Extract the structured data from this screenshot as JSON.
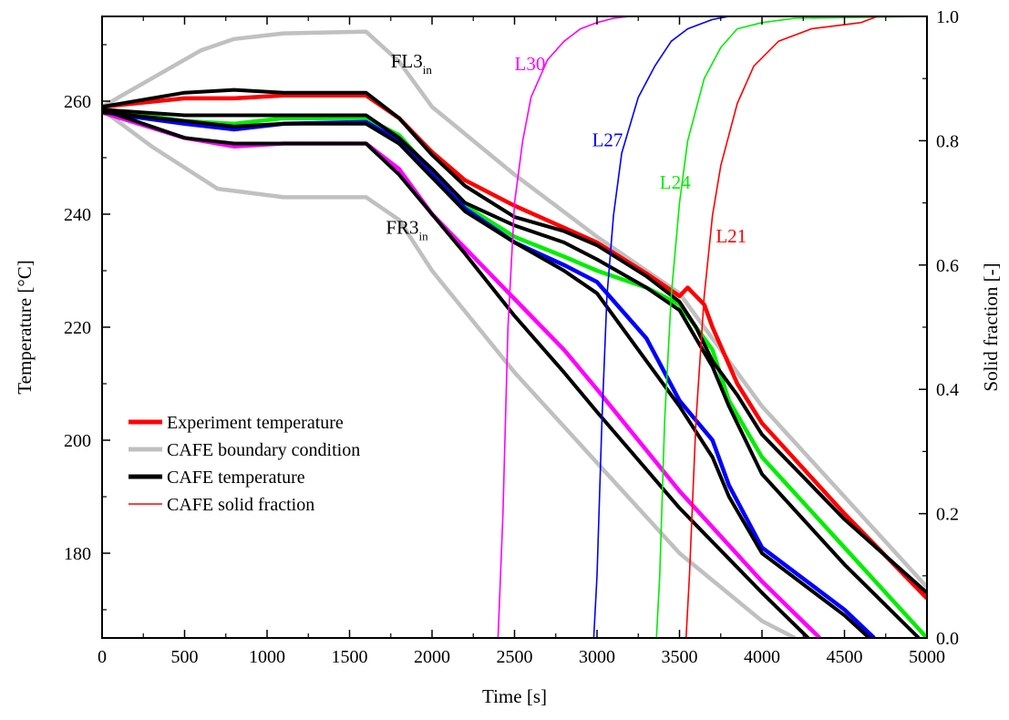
{
  "chart_data": {
    "type": "line",
    "title": "",
    "xlabel": "Time [s]",
    "ylabel_left": "Temperature [°C]",
    "ylabel_right": "Solid fraction [-]",
    "xlim": [
      0,
      5000
    ],
    "ylim_left": [
      165,
      275
    ],
    "ylim_right": [
      0,
      1
    ],
    "grid": false,
    "legend_position": "bottom-left",
    "x_ticks": [
      "0",
      "500",
      "1000",
      "1500",
      "2000",
      "2500",
      "3000",
      "3500",
      "4000",
      "4500",
      "5000"
    ],
    "y_left_ticks": [
      "180",
      "200",
      "220",
      "240",
      "260"
    ],
    "y_right_ticks": [
      "0.0",
      "0.2",
      "0.4",
      "0.6",
      "0.8",
      "1.0"
    ],
    "colors": {
      "experiment": "#ff0000",
      "boundary": "#c0c0c0",
      "cafe": "#000000",
      "L30": "#ff00ff",
      "L27": "#0000ff",
      "L24": "#00ee00",
      "L21": "#ff0000"
    },
    "legend": [
      {
        "label": "Experiment temperature",
        "color": "#ff0000",
        "style": "thick"
      },
      {
        "label": "CAFE boundary condition",
        "color": "#c0c0c0",
        "style": "thick"
      },
      {
        "label": "CAFE temperature",
        "color": "#000000",
        "style": "thick"
      },
      {
        "label": "CAFE solid fraction",
        "color": "#ff0000",
        "style": "thin"
      }
    ],
    "annotations": [
      {
        "text": "FL3",
        "sub": "in",
        "x": 1750,
        "y": 266
      },
      {
        "text": "FR3",
        "sub": "in",
        "x": 1720,
        "y": 236.5
      },
      {
        "text": "L30",
        "color": "#ff00ff",
        "x": 2500,
        "y": 265.5
      },
      {
        "text": "L27",
        "color": "#0000ff",
        "x": 2970,
        "y": 252
      },
      {
        "text": "L24",
        "color": "#00ee00",
        "x": 3380,
        "y": 244.5
      },
      {
        "text": "L21",
        "color": "#ff0000",
        "x": 3720,
        "y": 235
      }
    ],
    "boundary_series": [
      {
        "name": "FL3in",
        "x": [
          0,
          300,
          600,
          800,
          1100,
          1600,
          1800,
          2000,
          2500,
          3000,
          3500,
          4000,
          4500,
          5000
        ],
        "y": [
          259,
          264,
          269,
          271,
          272,
          272.3,
          267,
          259,
          247,
          236,
          226,
          206,
          190,
          174
        ]
      },
      {
        "name": "FR3in",
        "x": [
          0,
          300,
          700,
          1100,
          1600,
          1800,
          2000,
          2500,
          3000,
          3500,
          4000,
          4200
        ],
        "y": [
          258.5,
          252,
          244.5,
          243,
          243,
          239,
          230,
          212,
          196,
          180,
          168,
          165
        ]
      }
    ],
    "temperature_series": [
      {
        "name": "L21",
        "color": "#ff0000",
        "x": [
          0,
          500,
          800,
          1100,
          1600,
          1800,
          2000,
          2200,
          2500,
          3000,
          3300,
          3500,
          3550,
          3650,
          3700,
          3850,
          4000,
          4500,
          5000
        ],
        "y": [
          259,
          260.5,
          260.5,
          261,
          261,
          257,
          251,
          246,
          241.5,
          235,
          229.5,
          225.5,
          227,
          224,
          220,
          210,
          203,
          187,
          172
        ]
      },
      {
        "name": "L24",
        "color": "#00ee00",
        "x": [
          0,
          500,
          800,
          1100,
          1600,
          1800,
          2000,
          2200,
          2500,
          2800,
          3000,
          3300,
          3500,
          3700,
          3800,
          4000,
          4500,
          5000
        ],
        "y": [
          258.5,
          256.5,
          256,
          257,
          257,
          254,
          247.5,
          241.5,
          236,
          232.5,
          230,
          227,
          224,
          216,
          207,
          197,
          181,
          165
        ]
      },
      {
        "name": "L27",
        "color": "#0000ff",
        "x": [
          0,
          500,
          800,
          1100,
          1600,
          1800,
          2000,
          2200,
          2500,
          2800,
          3000,
          3300,
          3500,
          3700,
          3800,
          4000,
          4500,
          4680
        ],
        "y": [
          258,
          256,
          255,
          256,
          256.3,
          253,
          247,
          241,
          235,
          231,
          228,
          218,
          207,
          200,
          192,
          181,
          170,
          165
        ]
      },
      {
        "name": "L30",
        "color": "#ff00ff",
        "x": [
          0,
          500,
          800,
          1100,
          1600,
          1800,
          2000,
          2200,
          2500,
          2800,
          3000,
          3500,
          4000,
          4350
        ],
        "y": [
          258,
          253.5,
          252,
          252.5,
          252.5,
          248,
          240,
          234,
          225,
          216,
          209,
          191,
          175,
          165
        ]
      }
    ],
    "cafe_temperature_series": [
      {
        "name": "L21",
        "x": [
          0,
          500,
          800,
          1100,
          1600,
          1800,
          2000,
          2200,
          2500,
          2800,
          3000,
          3300,
          3500,
          3600,
          3700,
          3850,
          4000,
          4500,
          5000
        ],
        "y": [
          259,
          261.5,
          262,
          261.5,
          261.5,
          257,
          250.5,
          245,
          239.5,
          237,
          234.5,
          229,
          224.5,
          220,
          214,
          208,
          201,
          186,
          173
        ]
      },
      {
        "name": "L24",
        "x": [
          0,
          500,
          800,
          1100,
          1600,
          1800,
          2000,
          2200,
          2500,
          2800,
          3000,
          3300,
          3500,
          3700,
          3800,
          4000,
          4500,
          4950
        ],
        "y": [
          258.5,
          257.5,
          257.5,
          257.5,
          257.5,
          253.5,
          248,
          242,
          238,
          235,
          232,
          227,
          223,
          213,
          206,
          194,
          178,
          165
        ]
      },
      {
        "name": "L27",
        "x": [
          0,
          500,
          800,
          1100,
          1600,
          1800,
          2000,
          2200,
          2500,
          2800,
          3000,
          3300,
          3500,
          3700,
          3800,
          4000,
          4500,
          4650
        ],
        "y": [
          258,
          256.5,
          255.5,
          256,
          256,
          252.5,
          246.5,
          240.5,
          235,
          230,
          226,
          214,
          206,
          197,
          190,
          180,
          169,
          165
        ]
      },
      {
        "name": "L30",
        "x": [
          0,
          500,
          800,
          1100,
          1600,
          1800,
          2000,
          2200,
          2500,
          2800,
          3000,
          3500,
          4000,
          4280
        ],
        "y": [
          258.5,
          253.5,
          252.5,
          252.5,
          252.5,
          247,
          240,
          233,
          222,
          212,
          205,
          188,
          173,
          165
        ]
      }
    ],
    "solid_fraction_series": [
      {
        "name": "L30",
        "color": "#ff00ff",
        "x": [
          0,
          2400,
          2430,
          2460,
          2500,
          2550,
          2600,
          2700,
          2800,
          2900,
          3000,
          3100,
          3200,
          5000
        ],
        "y": [
          0,
          0,
          0.2,
          0.5,
          0.7,
          0.8,
          0.87,
          0.93,
          0.96,
          0.98,
          0.99,
          0.997,
          1,
          1
        ]
      },
      {
        "name": "L27",
        "color": "#0000ff",
        "x": [
          0,
          2980,
          3000,
          3030,
          3060,
          3100,
          3150,
          3250,
          3350,
          3450,
          3550,
          3700,
          3800,
          5000
        ],
        "y": [
          0,
          0,
          0.1,
          0.35,
          0.55,
          0.68,
          0.78,
          0.87,
          0.92,
          0.96,
          0.98,
          0.995,
          1,
          1
        ]
      },
      {
        "name": "L24",
        "color": "#00ee00",
        "x": [
          0,
          3360,
          3380,
          3410,
          3450,
          3500,
          3550,
          3650,
          3750,
          3850,
          4000,
          4200,
          5000
        ],
        "y": [
          0,
          0,
          0.1,
          0.35,
          0.55,
          0.7,
          0.8,
          0.9,
          0.95,
          0.98,
          0.99,
          0.997,
          1
        ]
      },
      {
        "name": "L21",
        "color": "#ff0000",
        "x": [
          0,
          3540,
          3560,
          3600,
          3650,
          3700,
          3750,
          3850,
          3950,
          4100,
          4300,
          4600,
          4700,
          5000
        ],
        "y": [
          0,
          0,
          0.1,
          0.35,
          0.55,
          0.68,
          0.76,
          0.86,
          0.92,
          0.96,
          0.98,
          0.99,
          1,
          1
        ]
      }
    ]
  }
}
